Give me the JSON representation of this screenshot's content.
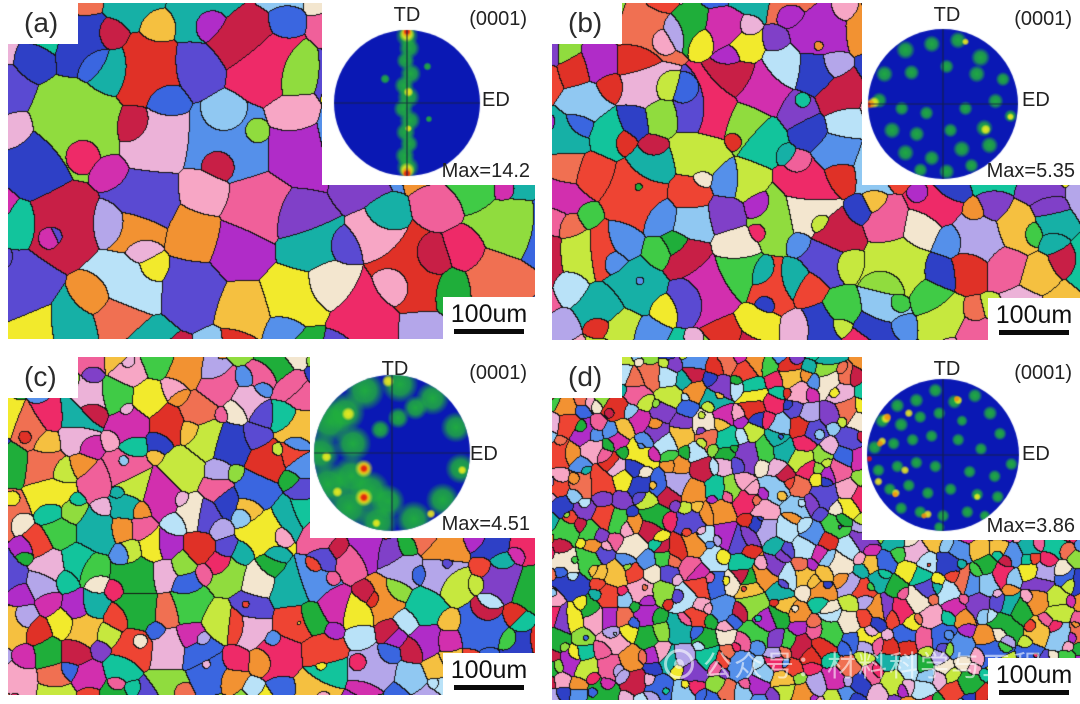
{
  "figure_type": "EBSD IPF grain-orientation maps with (0001) pole figure insets",
  "panels": [
    {
      "id": "a",
      "label": "(a)",
      "scale_label": "100um",
      "pole_figure": {
        "top_label": "TD",
        "right_label": "ED",
        "plane_label": "(0001)",
        "max_label": "Max=14.2",
        "max_value": 14.2
      },
      "microstructure": {
        "cell": 44,
        "seed": 101
      },
      "pf_blobs": {
        "g": [
          [
            0,
            -0.92,
            0.16
          ],
          [
            0.03,
            -0.75,
            0.15
          ],
          [
            -0.02,
            -0.58,
            0.13
          ],
          [
            0.05,
            -0.4,
            0.15
          ],
          [
            -0.04,
            -0.24,
            0.14
          ],
          [
            0.02,
            -0.08,
            0.16
          ],
          [
            -0.05,
            0.08,
            0.14
          ],
          [
            0.04,
            0.24,
            0.15
          ],
          [
            -0.02,
            0.4,
            0.14
          ],
          [
            0.03,
            0.56,
            0.13
          ],
          [
            -0.03,
            0.72,
            0.14
          ],
          [
            0.01,
            0.88,
            0.16
          ],
          [
            -0.3,
            -0.33,
            0.07
          ],
          [
            0.28,
            -0.5,
            0.06
          ],
          [
            0.3,
            0.22,
            0.05
          ]
        ],
        "y": [
          [
            0,
            -0.94,
            0.11
          ],
          [
            0.02,
            -0.15,
            0.07
          ],
          [
            0,
            0.92,
            0.11
          ],
          [
            0.02,
            0.35,
            0.05
          ]
        ],
        "o": [
          [
            0,
            -0.97,
            0.075
          ],
          [
            0,
            0.95,
            0.075
          ]
        ],
        "r": [
          [
            0,
            -0.98,
            0.05
          ],
          [
            0,
            0.97,
            0.055
          ]
        ]
      }
    },
    {
      "id": "b",
      "label": "(b)",
      "scale_label": "100um",
      "pole_figure": {
        "top_label": "TD",
        "right_label": "ED",
        "plane_label": "(0001)",
        "max_label": "Max=5.35",
        "max_value": 5.35
      },
      "microstructure": {
        "cell": 31,
        "seed": 202
      },
      "pf_blobs": {
        "g": [
          [
            -0.5,
            -0.72,
            0.13
          ],
          [
            -0.15,
            -0.8,
            0.12
          ],
          [
            0.2,
            -0.85,
            0.12
          ],
          [
            0.5,
            -0.62,
            0.13
          ],
          [
            -0.78,
            -0.4,
            0.12
          ],
          [
            -0.42,
            -0.42,
            0.11
          ],
          [
            0.05,
            -0.5,
            0.1
          ],
          [
            0.45,
            -0.4,
            0.12
          ],
          [
            0.8,
            -0.33,
            0.1
          ],
          [
            -0.85,
            -0.05,
            0.11
          ],
          [
            -0.55,
            0.06,
            0.1
          ],
          [
            -0.22,
            0.12,
            0.1
          ],
          [
            0.3,
            0.06,
            0.1
          ],
          [
            0.7,
            -0.04,
            0.11
          ],
          [
            0.9,
            0.16,
            0.09
          ],
          [
            -0.68,
            0.35,
            0.12
          ],
          [
            -0.35,
            0.4,
            0.11
          ],
          [
            0.1,
            0.35,
            0.1
          ],
          [
            0.55,
            0.32,
            0.12
          ],
          [
            -0.5,
            0.65,
            0.12
          ],
          [
            -0.15,
            0.72,
            0.11
          ],
          [
            0.25,
            0.6,
            0.12
          ],
          [
            0.62,
            0.55,
            0.12
          ],
          [
            0.05,
            0.9,
            0.11
          ],
          [
            0.38,
            0.82,
            0.1
          ],
          [
            -0.3,
            0.88,
            0.1
          ]
        ],
        "y": [
          [
            0.57,
            0.34,
            0.07
          ],
          [
            0.9,
            0.17,
            0.05
          ],
          [
            -0.92,
            -0.02,
            0.08
          ],
          [
            0.3,
            -0.83,
            0.05
          ]
        ],
        "o": [
          [
            -0.97,
            0,
            0.065
          ]
        ],
        "r": [
          [
            -1.0,
            0.01,
            0.045
          ]
        ]
      }
    },
    {
      "id": "c",
      "label": "(c)",
      "scale_label": "100um",
      "pole_figure": {
        "top_label": "TD",
        "right_label": "ED",
        "plane_label": "(0001)",
        "max_label": "Max=4.51",
        "max_value": 4.51
      },
      "microstructure": {
        "cell": 24,
        "seed": 303
      },
      "pf_blobs": {
        "g": [
          [
            -0.8,
            -0.4,
            0.28
          ],
          [
            -0.92,
            0,
            0.26
          ],
          [
            -0.82,
            0.4,
            0.28
          ],
          [
            -0.55,
            0.7,
            0.28
          ],
          [
            -0.18,
            0.88,
            0.26
          ],
          [
            0.28,
            0.85,
            0.24
          ],
          [
            0.65,
            0.6,
            0.22
          ],
          [
            0.88,
            0.2,
            0.2
          ],
          [
            0.82,
            -0.33,
            0.2
          ],
          [
            0.52,
            -0.7,
            0.22
          ],
          [
            0.1,
            -0.88,
            0.24
          ],
          [
            -0.35,
            -0.8,
            0.26
          ],
          [
            -0.6,
            -0.52,
            0.26
          ],
          [
            -0.5,
            -0.12,
            0.24
          ],
          [
            -0.52,
            0.3,
            0.27
          ],
          [
            -0.28,
            0.48,
            0.26
          ],
          [
            -0.05,
            0.62,
            0.22
          ],
          [
            0.08,
            -0.45,
            0.14
          ],
          [
            0.3,
            -0.58,
            0.16
          ],
          [
            -0.15,
            -0.3,
            0.13
          ]
        ],
        "y": [
          [
            -0.56,
            -0.5,
            0.09
          ],
          [
            -0.05,
            -0.92,
            0.08
          ],
          [
            -0.84,
            0.05,
            0.07
          ],
          [
            0.9,
            0.22,
            0.06
          ],
          [
            0.5,
            0.78,
            0.06
          ],
          [
            -0.36,
            0.2,
            0.12
          ],
          [
            -0.36,
            0.57,
            0.12
          ],
          [
            -0.7,
            0.5,
            0.07
          ],
          [
            -0.2,
            0.9,
            0.06
          ]
        ],
        "o": [
          [
            -0.36,
            0.2,
            0.08
          ],
          [
            -0.36,
            0.57,
            0.08
          ]
        ],
        "r": [
          [
            -0.36,
            0.2,
            0.048
          ],
          [
            -0.36,
            0.57,
            0.05
          ]
        ]
      }
    },
    {
      "id": "d",
      "label": "(d)",
      "scale_label": "100um",
      "pole_figure": {
        "top_label": "TD",
        "right_label": "ED",
        "plane_label": "(0001)",
        "max_label": "Max=3.86",
        "max_value": 3.86
      },
      "microstructure": {
        "cell": 15,
        "seed": 404
      },
      "pf_blobs": {
        "g": [
          [
            -0.6,
            -0.65,
            0.1
          ],
          [
            -0.35,
            -0.72,
            0.1
          ],
          [
            -0.1,
            -0.85,
            0.1
          ],
          [
            0.15,
            -0.7,
            0.1
          ],
          [
            0.42,
            -0.78,
            0.1
          ],
          [
            0.62,
            -0.55,
            0.1
          ],
          [
            -0.8,
            -0.45,
            0.1
          ],
          [
            -0.55,
            -0.4,
            0.1
          ],
          [
            -0.3,
            -0.5,
            0.09
          ],
          [
            -0.05,
            -0.55,
            0.09
          ],
          [
            0.75,
            -0.28,
            0.09
          ],
          [
            -0.9,
            -0.1,
            0.1
          ],
          [
            -0.65,
            -0.15,
            0.09
          ],
          [
            -0.4,
            -0.2,
            0.09
          ],
          [
            -0.15,
            -0.25,
            0.09
          ],
          [
            0.2,
            -0.2,
            0.09
          ],
          [
            0.5,
            -0.08,
            0.09
          ],
          [
            0.9,
            0.12,
            0.09
          ],
          [
            -0.85,
            0.2,
            0.09
          ],
          [
            -0.6,
            0.15,
            0.09
          ],
          [
            -0.35,
            0.1,
            0.09
          ],
          [
            -0.1,
            0.15,
            0.09
          ],
          [
            0.35,
            0.22,
            0.09
          ],
          [
            0.68,
            0.28,
            0.09
          ],
          [
            -0.7,
            0.45,
            0.09
          ],
          [
            -0.45,
            0.4,
            0.09
          ],
          [
            -0.2,
            0.5,
            0.09
          ],
          [
            0.1,
            0.45,
            0.09
          ],
          [
            0.45,
            0.52,
            0.09
          ],
          [
            0.72,
            0.55,
            0.09
          ],
          [
            -0.55,
            0.7,
            0.09
          ],
          [
            -0.3,
            0.75,
            0.09
          ],
          [
            0,
            0.8,
            0.09
          ],
          [
            0.32,
            0.75,
            0.09
          ],
          [
            -0.05,
            0.95,
            0.08
          ],
          [
            0.55,
            0.8,
            0.08
          ],
          [
            0.25,
            -0.45,
            0.08
          ]
        ],
        "y": [
          [
            -0.75,
            -0.48,
            0.07
          ],
          [
            -0.8,
            -0.18,
            0.06
          ],
          [
            -0.5,
            0.2,
            0.06
          ],
          [
            -0.45,
            -0.55,
            0.06
          ],
          [
            -0.2,
            0.78,
            0.06
          ],
          [
            0.2,
            -0.72,
            0.06
          ],
          [
            -0.85,
            0.35,
            0.06
          ],
          [
            -0.62,
            0.5,
            0.06
          ],
          [
            0.45,
            0.55,
            0.05
          ]
        ],
        "o": [
          [
            -0.73,
            -0.5,
            0.055
          ],
          [
            -0.83,
            -0.15,
            0.05
          ],
          [
            0.18,
            -0.74,
            0.045
          ],
          [
            -0.25,
            0.8,
            0.045
          ],
          [
            -0.63,
            0.52,
            0.045
          ]
        ],
        "r": [
          [
            -0.97,
            0.05,
            0.045
          ]
        ]
      }
    }
  ],
  "watermark": {
    "icon": "circle-flower-logo",
    "text": "公众号：材料科学与工程"
  },
  "pf_colors": {
    "base": "#0a18b4",
    "g": "#21b23b",
    "y": "#f1ee1f",
    "o": "#f49210",
    "r": "#e0190e",
    "cross": "#15213f"
  },
  "grain_palette": [
    "#e03127",
    "#ee4433",
    "#c81f46",
    "#ee2a68",
    "#f0609a",
    "#f7a6c5",
    "#d22fae",
    "#b02cc8",
    "#8040c8",
    "#5a4ad2",
    "#2e40c6",
    "#3a66e0",
    "#5590ea",
    "#90c8f2",
    "#b9e2f8",
    "#16b0a6",
    "#12c49c",
    "#1fae3a",
    "#40cb46",
    "#90dc3e",
    "#c6e83e",
    "#f2ea2c",
    "#f5c040",
    "#f29232",
    "#f07052",
    "#f3e6cf",
    "#b4a6ea",
    "#ecb2d8"
  ]
}
